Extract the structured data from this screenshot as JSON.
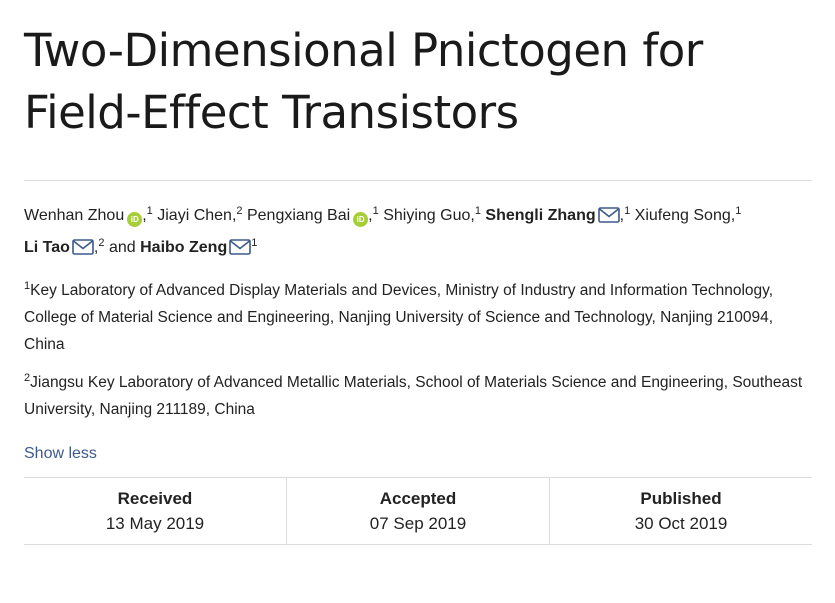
{
  "article": {
    "title_line1": "Two-Dimensional Pnictogen for",
    "title_line2": "Field-Effect Transistors"
  },
  "authors": [
    {
      "name": "Wenhan Zhou",
      "orcid": true,
      "email": false,
      "bold": false,
      "sup": "1",
      "sep": ", "
    },
    {
      "name": "Jiayi Chen",
      "orcid": false,
      "email": false,
      "bold": false,
      "sup": "2",
      "sep": " "
    },
    {
      "name": "Pengxiang Bai",
      "orcid": true,
      "email": false,
      "bold": false,
      "sup": "1",
      "sep": " "
    },
    {
      "name": "Shiying Guo",
      "orcid": false,
      "email": false,
      "bold": false,
      "sup": "1",
      "sep": " "
    },
    {
      "name": "Shengli Zhang",
      "orcid": false,
      "email": true,
      "bold": true,
      "sup": "1",
      "sep": " "
    },
    {
      "name": "Xiufeng Song",
      "orcid": false,
      "email": false,
      "bold": false,
      "sup": "1",
      "sep": " "
    },
    {
      "name": "Li Tao",
      "orcid": false,
      "email": true,
      "bold": true,
      "sup": "2",
      "sep": " "
    },
    {
      "name": "Haibo Zeng",
      "orcid": false,
      "email": true,
      "bold": true,
      "sup": "1",
      "sep": ""
    }
  ],
  "authors_conjunction": "and",
  "orcid_glyph": "iD",
  "affiliations": [
    {
      "num": "1",
      "text": "Key Laboratory of Advanced Display Materials and Devices, Ministry of Industry and Information Technology, College of Material Science and Engineering, Nanjing University of Science and Technology, Nanjing 210094, China"
    },
    {
      "num": "2",
      "text": "Jiangsu Key Laboratory of Advanced Metallic Materials, School of Materials Science and Engineering, Southeast University, Nanjing 211189, China"
    }
  ],
  "toggle": {
    "label": "Show less"
  },
  "dates": {
    "received_label": "Received",
    "received_value": "13 May 2019",
    "accepted_label": "Accepted",
    "accepted_value": "07 Sep 2019",
    "published_label": "Published",
    "published_value": "30 Oct 2019"
  },
  "colors": {
    "orcid": "#a6ce39",
    "link": "#3c5a8a",
    "divider": "#dcdcdc"
  }
}
